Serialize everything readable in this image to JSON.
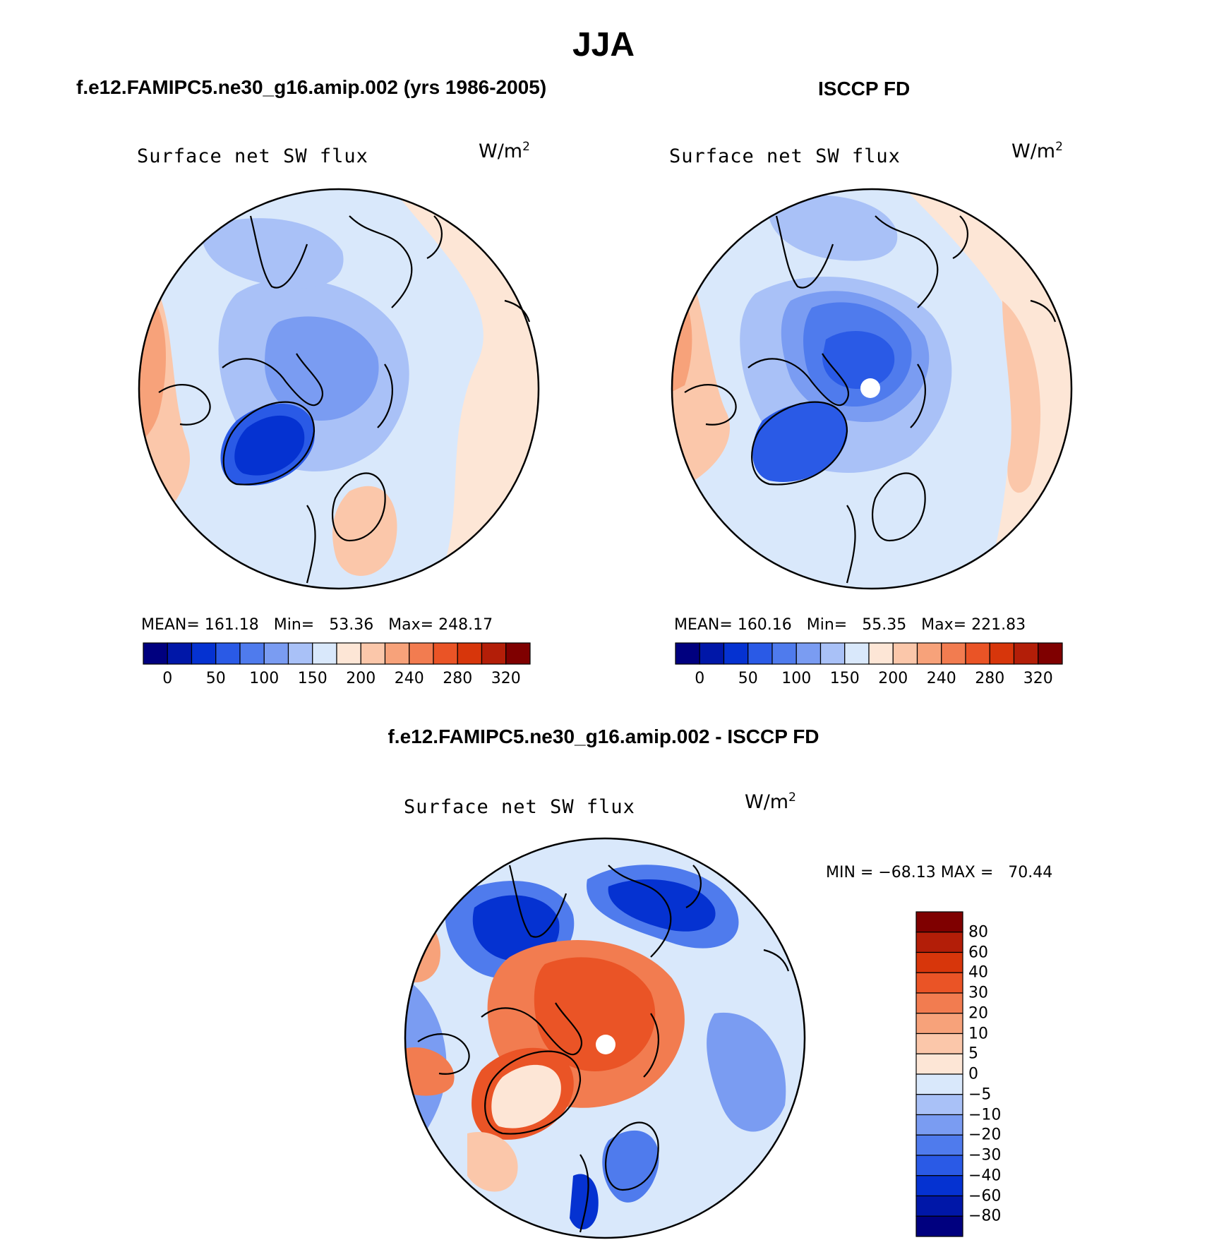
{
  "figure": {
    "title": "JJA"
  },
  "panels": {
    "model": {
      "title": "f.e12.FAMIPC5.ne30_g16.amip.002 (yrs 1986-2005)",
      "variable": "Surface net SW flux",
      "units": "W/m",
      "units_sup": "2",
      "stats": "MEAN= 161.18   Min=   53.36   Max= 248.17"
    },
    "obs": {
      "title": "ISCCP FD",
      "variable": "Surface net SW flux",
      "units": "W/m",
      "units_sup": "2",
      "stats": "MEAN= 160.16   Min=   55.35   Max= 221.83"
    },
    "diff": {
      "title": "f.e12.FAMIPC5.ne30_g16.amip.002 - ISCCP FD",
      "variable": "Surface net SW flux",
      "units": "W/m",
      "units_sup": "2",
      "stats": "MIN = −68.13 MAX =   70.44"
    }
  },
  "colorbars": {
    "field": {
      "colors": [
        "#00007f",
        "#0017a8",
        "#0532d1",
        "#2a5ae6",
        "#4f7bed",
        "#7a9cf2",
        "#a9c1f7",
        "#d9e8fb",
        "#fde6d6",
        "#fbc7aa",
        "#f7a27a",
        "#f27c50",
        "#ea5426",
        "#d7360b",
        "#b31e08",
        "#7f0000"
      ],
      "ticks": [
        "0",
        "50",
        "100",
        "150",
        "200",
        "240",
        "280",
        "320"
      ]
    },
    "diff": {
      "colors": [
        "#7f0000",
        "#b31e08",
        "#d7360b",
        "#ea5426",
        "#f27c50",
        "#f7a27a",
        "#fbc7aa",
        "#fde6d6",
        "#d9e8fb",
        "#a9c1f7",
        "#7a9cf2",
        "#4f7bed",
        "#2a5ae6",
        "#0532d1",
        "#0017a8",
        "#00007f"
      ],
      "ticks": [
        "80",
        "60",
        "40",
        "30",
        "20",
        "10",
        "5",
        "0",
        "−5",
        "−10",
        "−20",
        "−30",
        "−40",
        "−60",
        "−80"
      ]
    }
  }
}
